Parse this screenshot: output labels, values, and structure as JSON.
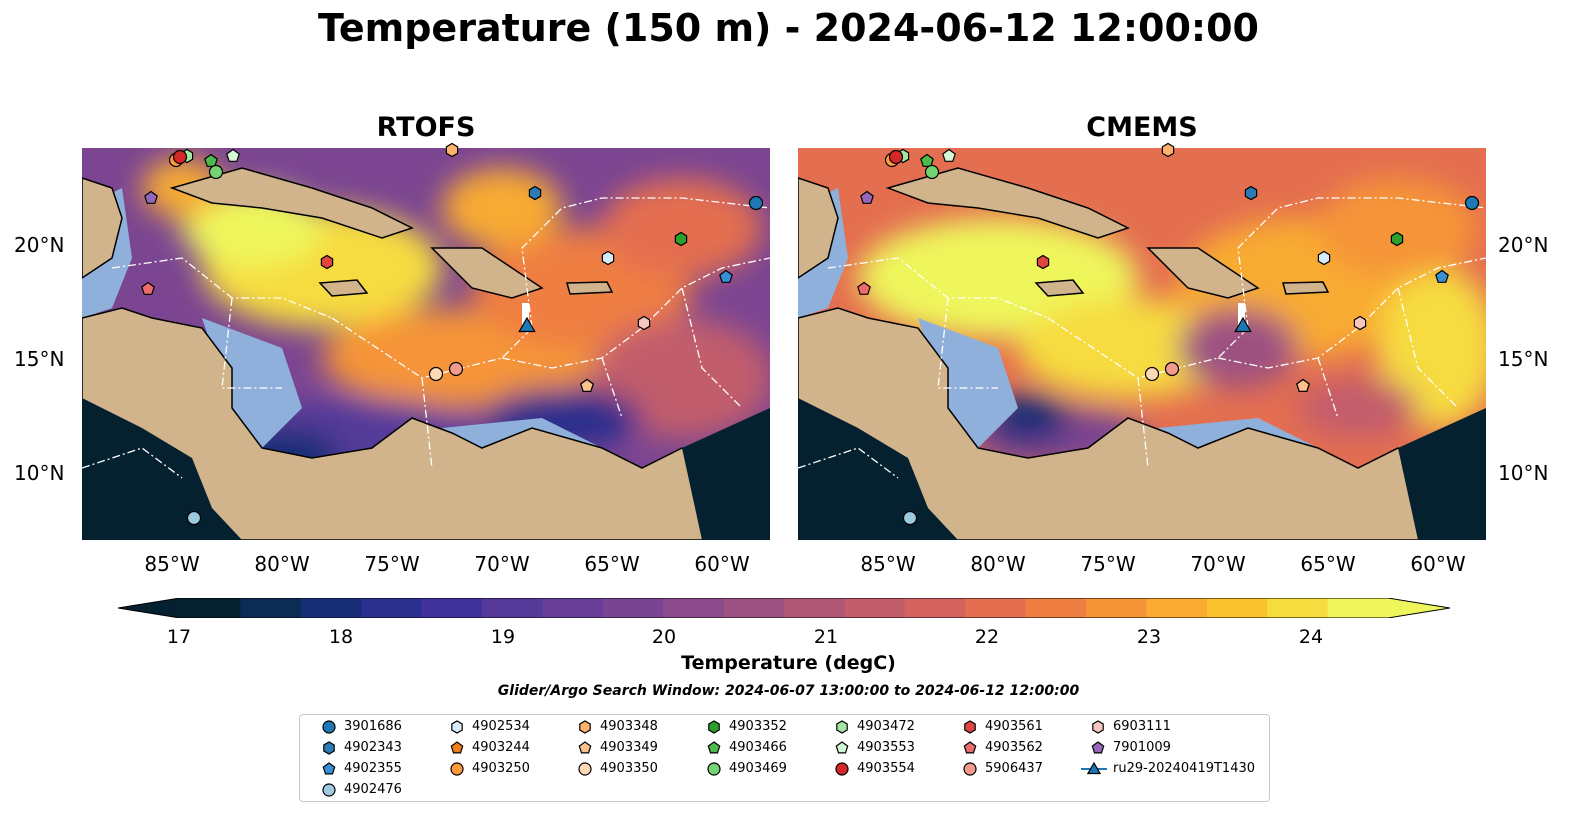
{
  "title": "Temperature (150 m) - 2024-06-12 12:00:00",
  "panels": [
    {
      "title": "RTOFS"
    },
    {
      "title": "CMEMS"
    }
  ],
  "map": {
    "lat_labels": [
      "20°N",
      "15°N",
      "10°N"
    ],
    "lon_labels": [
      "85°W",
      "80°W",
      "75°W",
      "70°W",
      "65°W",
      "60°W"
    ]
  },
  "colorbar": {
    "label": "Temperature (degC)",
    "ticks": [
      "17",
      "18",
      "19",
      "20",
      "21",
      "22",
      "23",
      "24"
    ],
    "colors": [
      "#05212f",
      "#0b2c55",
      "#182f78",
      "#2b2f8d",
      "#40329a",
      "#553a9a",
      "#673f98",
      "#794592",
      "#8b4b8b",
      "#9d5181",
      "#b05776",
      "#c25d6c",
      "#d4635f",
      "#e46e50",
      "#ef7e42",
      "#f59437",
      "#f8ab30",
      "#f9c32f",
      "#f6dc3f",
      "#eef65b"
    ]
  },
  "search_window": "Glider/Argo Search Window: 2024-06-07 13:00:00 to 2024-06-12 12:00:00",
  "legend": {
    "items": [
      {
        "label": "3901686",
        "marker": "circle",
        "color": "#1f77b4"
      },
      {
        "label": "4902343",
        "marker": "hexagon",
        "color": "#2c7bb6"
      },
      {
        "label": "4902355",
        "marker": "pentagon",
        "color": "#3a8fd4"
      },
      {
        "label": "4902476",
        "marker": "circle",
        "color": "#9ecae1"
      },
      {
        "label": "4902534",
        "marker": "hexagon",
        "color": "#d6ecfa"
      },
      {
        "label": "4903244",
        "marker": "pentagon",
        "color": "#f07f1a"
      },
      {
        "label": "4903250",
        "marker": "circle",
        "color": "#fd9a3a"
      },
      {
        "label": "4903348",
        "marker": "hexagon",
        "color": "#fdb36b"
      },
      {
        "label": "4903349",
        "marker": "pentagon",
        "color": "#fdc28b"
      },
      {
        "label": "4903350",
        "marker": "circle",
        "color": "#fdd9b5"
      },
      {
        "label": "4903352",
        "marker": "hexagon",
        "color": "#2ca02c"
      },
      {
        "label": "4903466",
        "marker": "pentagon",
        "color": "#4cbb4c"
      },
      {
        "label": "4903469",
        "marker": "circle",
        "color": "#74d474"
      },
      {
        "label": "4903472",
        "marker": "hexagon",
        "color": "#a1e6a1"
      },
      {
        "label": "4903553",
        "marker": "pentagon",
        "color": "#d4f7d4"
      },
      {
        "label": "4903554",
        "marker": "circle",
        "color": "#d62728"
      },
      {
        "label": "4903561",
        "marker": "hexagon",
        "color": "#e0453f"
      },
      {
        "label": "4903562",
        "marker": "pentagon",
        "color": "#ec6b6b"
      },
      {
        "label": "5906437",
        "marker": "circle",
        "color": "#f29a8e"
      },
      {
        "label": "6903111",
        "marker": "hexagon",
        "color": "#f7c6c0"
      },
      {
        "label": "7901009",
        "marker": "pentagon",
        "color": "#9467bd"
      },
      {
        "label": "ru29-20240419T1430",
        "marker": "triangle-line",
        "color": "#1f77b4"
      }
    ]
  }
}
